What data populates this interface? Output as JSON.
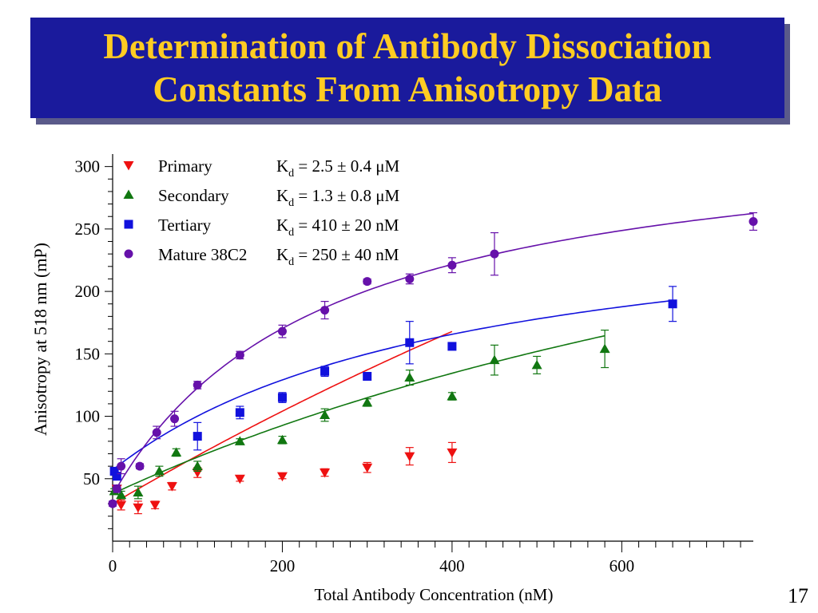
{
  "slide": {
    "title_line1": "Determination of Antibody Dissociation",
    "title_line2": "Constants From Anisotropy Data",
    "number": "17"
  },
  "colors": {
    "title_bg": "#1a1a9c",
    "title_text": "#ffcc22",
    "primary": "#ee1111",
    "secondary": "#117711",
    "tertiary": "#1111dd",
    "mature": "#6611aa"
  },
  "chart_data": {
    "type": "scatter",
    "xlabel": "Total Antibody Concentration (nM)",
    "ylabel": "Anisotropy at 518 nm (mP)",
    "xlim": [
      0,
      755
    ],
    "ylim": [
      0,
      310
    ],
    "x_ticks": [
      0,
      200,
      400,
      600
    ],
    "y_ticks": [
      50,
      100,
      150,
      200,
      250,
      300
    ],
    "grid": false,
    "legend_position": "top-left",
    "series": [
      {
        "key": "primary",
        "name": "Primary",
        "kd_text": "= 2.5 ± 0.4 μM",
        "marker": "triangle-down",
        "points": [
          {
            "x": 5,
            "y": 42,
            "err": 2
          },
          {
            "x": 10,
            "y": 29,
            "err": 4
          },
          {
            "x": 30,
            "y": 27,
            "err": 5
          },
          {
            "x": 50,
            "y": 29,
            "err": 3
          },
          {
            "x": 70,
            "y": 44,
            "err": 3
          },
          {
            "x": 100,
            "y": 55,
            "err": 4
          },
          {
            "x": 150,
            "y": 50,
            "err": 2
          },
          {
            "x": 200,
            "y": 52,
            "err": 2
          },
          {
            "x": 250,
            "y": 55,
            "err": 3
          },
          {
            "x": 300,
            "y": 59,
            "err": 4
          },
          {
            "x": 350,
            "y": 68,
            "err": 7
          },
          {
            "x": 400,
            "y": 71,
            "err": 8
          }
        ],
        "fit": {
          "base": 30,
          "amp": 1000,
          "kd": 2500,
          "x_end": 400
        }
      },
      {
        "key": "secondary",
        "name": "Secondary",
        "kd_text": "= 1.3 ± 0.8 μM",
        "marker": "triangle-up",
        "points": [
          {
            "x": 2,
            "y": 40,
            "err": 2
          },
          {
            "x": 10,
            "y": 37,
            "err": 3
          },
          {
            "x": 30,
            "y": 39,
            "err": 5
          },
          {
            "x": 55,
            "y": 56,
            "err": 4
          },
          {
            "x": 75,
            "y": 71,
            "err": 3
          },
          {
            "x": 100,
            "y": 60,
            "err": 4
          },
          {
            "x": 150,
            "y": 80,
            "err": 2
          },
          {
            "x": 200,
            "y": 81,
            "err": 3
          },
          {
            "x": 250,
            "y": 101,
            "err": 5
          },
          {
            "x": 300,
            "y": 111,
            "err": 3
          },
          {
            "x": 350,
            "y": 131,
            "err": 6
          },
          {
            "x": 400,
            "y": 116,
            "err": 3
          },
          {
            "x": 450,
            "y": 145,
            "err": 12
          },
          {
            "x": 500,
            "y": 141,
            "err": 7
          },
          {
            "x": 580,
            "y": 154,
            "err": 15
          }
        ],
        "fit": {
          "base": 38,
          "amp": 410,
          "kd": 1300,
          "x_end": 580
        }
      },
      {
        "key": "tertiary",
        "name": "Tertiary",
        "kd_text": "= 410 ± 20 nM",
        "marker": "square",
        "points": [
          {
            "x": 2,
            "y": 56,
            "err": 3
          },
          {
            "x": 5,
            "y": 52,
            "err": 3
          },
          {
            "x": 100,
            "y": 84,
            "err": 11
          },
          {
            "x": 150,
            "y": 103,
            "err": 5
          },
          {
            "x": 200,
            "y": 115,
            "err": 4
          },
          {
            "x": 250,
            "y": 136,
            "err": 4
          },
          {
            "x": 300,
            "y": 132,
            "err": 3
          },
          {
            "x": 350,
            "y": 159,
            "err": 17
          },
          {
            "x": 400,
            "y": 156,
            "err": 2
          },
          {
            "x": 660,
            "y": 190,
            "err": 14
          }
        ],
        "fit": {
          "base": 57,
          "amp": 220,
          "kd": 410,
          "x_end": 660
        }
      },
      {
        "key": "mature",
        "name": "Mature 38C2",
        "kd_text": "= 250 ± 40 nM",
        "marker": "circle",
        "points": [
          {
            "x": 0,
            "y": 30,
            "err": 2
          },
          {
            "x": 5,
            "y": 42,
            "err": 3
          },
          {
            "x": 10,
            "y": 60,
            "err": 6
          },
          {
            "x": 32,
            "y": 60,
            "err": 2
          },
          {
            "x": 52,
            "y": 87,
            "err": 5
          },
          {
            "x": 73,
            "y": 98,
            "err": 6
          },
          {
            "x": 100,
            "y": 125,
            "err": 3
          },
          {
            "x": 150,
            "y": 149,
            "err": 3
          },
          {
            "x": 200,
            "y": 168,
            "err": 5
          },
          {
            "x": 250,
            "y": 185,
            "err": 7
          },
          {
            "x": 300,
            "y": 208,
            "err": 2
          },
          {
            "x": 350,
            "y": 210,
            "err": 4
          },
          {
            "x": 400,
            "y": 221,
            "err": 6
          },
          {
            "x": 450,
            "y": 230,
            "err": 17
          },
          {
            "x": 755,
            "y": 256,
            "err": 7
          }
        ],
        "fit": {
          "base": 37,
          "amp": 300,
          "kd": 250,
          "x_end": 755
        }
      }
    ]
  }
}
